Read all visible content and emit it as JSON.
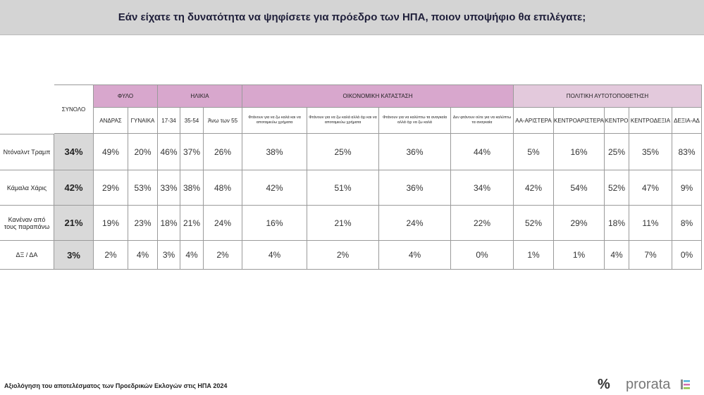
{
  "title": "Εάν είχατε τη δυνατότητα να ψηφίσετε για πρόεδρο  των ΗΠΑ, ποιον υποψήφιο θα επιλέγατε;",
  "table": {
    "total_header": "ΣΥΝΟΛΟ",
    "groups": [
      {
        "label": "ΦΥΛΟ",
        "columns": [
          "ΑΝΔΡΑΣ",
          "ΓΥΝΑΙΚΑ"
        ]
      },
      {
        "label": "ΗΛΙΚΙΑ",
        "columns": [
          "17-34",
          "35-54",
          "Άνω των 55"
        ]
      },
      {
        "label": "ΟΙΚΟΝΟΜΙΚΗ ΚΑΤΑΣΤΑΣΗ",
        "columns": [
          "Φτάνουν για να ζω καλά και να αποταμιεύω χρήματα",
          "Φτάνουν για να ζω καλά αλλά όχι και να αποταμιεύω χρήματα",
          "Φτάνουν για να καλύπτω τα αναγκαία αλλά όχι να ζω καλά",
          "Δεν φτάνουν ούτε για να καλύπτω τα αναγκαία"
        ]
      },
      {
        "label": "ΠΟΛΙΤΙΚΗ ΑΥΤΟΤΟΠΟΘΕΤΗΣΗ",
        "columns": [
          "ΑΑ-ΑΡΙΣΤΕΡΑ",
          "ΚΕΝΤΡΟΑΡΙΣΤΕΡΑ",
          "ΚΕΝΤΡΟ",
          "ΚΕΝΤΡΟΔΕΞΙΑ",
          "ΔΕΞΙΑ-ΑΔ"
        ]
      }
    ],
    "rows": [
      {
        "label": "Ντόναλντ Τραμπ",
        "total": "34%",
        "cells": [
          "49%",
          "20%",
          "46%",
          "37%",
          "26%",
          "38%",
          "25%",
          "36%",
          "44%",
          "5%",
          "16%",
          "25%",
          "35%",
          "83%"
        ]
      },
      {
        "label": "Κάμαλα Χάρις",
        "total": "42%",
        "cells": [
          "29%",
          "53%",
          "33%",
          "38%",
          "48%",
          "42%",
          "51%",
          "36%",
          "34%",
          "42%",
          "54%",
          "52%",
          "47%",
          "9%"
        ]
      },
      {
        "label": "Κανέναν από τους παραπάνω",
        "total": "21%",
        "cells": [
          "19%",
          "23%",
          "18%",
          "21%",
          "24%",
          "16%",
          "21%",
          "24%",
          "22%",
          "52%",
          "29%",
          "18%",
          "11%",
          "8%"
        ]
      },
      {
        "label": "ΔΞ / ΔΑ",
        "total": "3%",
        "cells": [
          "2%",
          "4%",
          "3%",
          "4%",
          "2%",
          "4%",
          "2%",
          "4%",
          "0%",
          "1%",
          "1%",
          "4%",
          "7%",
          "0%"
        ]
      }
    ]
  },
  "footer": "Αξιολόγηση του αποτελέσματος των Προεδρικών Εκλογών στις ΗΠΑ 2024",
  "logo_mark": "%",
  "logo": "prorata"
}
